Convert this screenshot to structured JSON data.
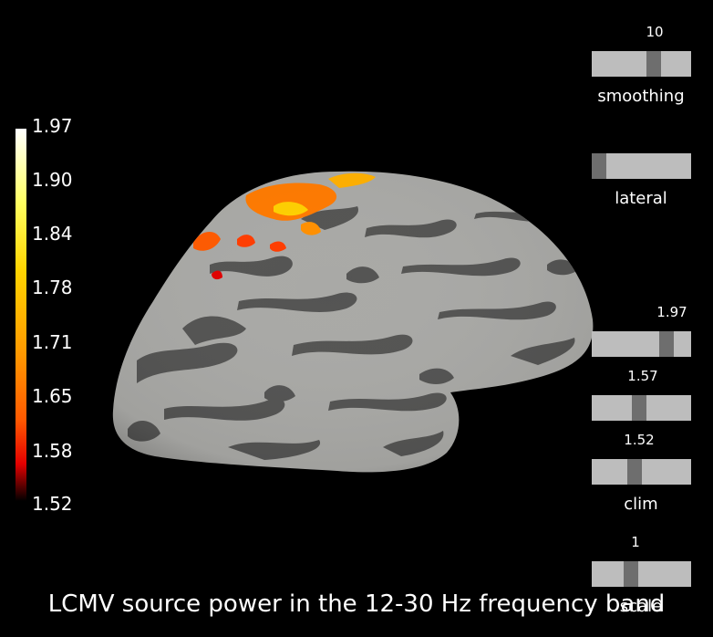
{
  "colorbar": {
    "labels": [
      "1.97",
      "1.90",
      "1.84",
      "1.78",
      "1.71",
      "1.65",
      "1.58",
      "1.52"
    ],
    "colors": [
      "#ffffff",
      "#ffff60",
      "#ffd400",
      "#ff9a00",
      "#ff5a00",
      "#e40000",
      "#000000"
    ]
  },
  "sliders": {
    "smoothing": {
      "title": "smoothing",
      "value": "10",
      "level": 0.65
    },
    "orientation": {
      "title": "lateral",
      "level": 0.0
    },
    "clim_max": {
      "value": "1.97",
      "level": 0.8
    },
    "clim_mid": {
      "value": "1.57",
      "level": 0.47
    },
    "clim_min": {
      "value": "1.52",
      "level": 0.42
    },
    "clim": {
      "title": "clim"
    },
    "scale": {
      "title": "scale",
      "value": "1",
      "level": 0.38
    }
  },
  "title": "LCMV source power in the 12-30 Hz frequency band",
  "colors": {
    "background": "#000000",
    "cortex_light": "#a9a9a6",
    "cortex_dark": "#545453",
    "slider_bg": "#bdbdbd",
    "slider_handle": "#6e6e6e"
  }
}
